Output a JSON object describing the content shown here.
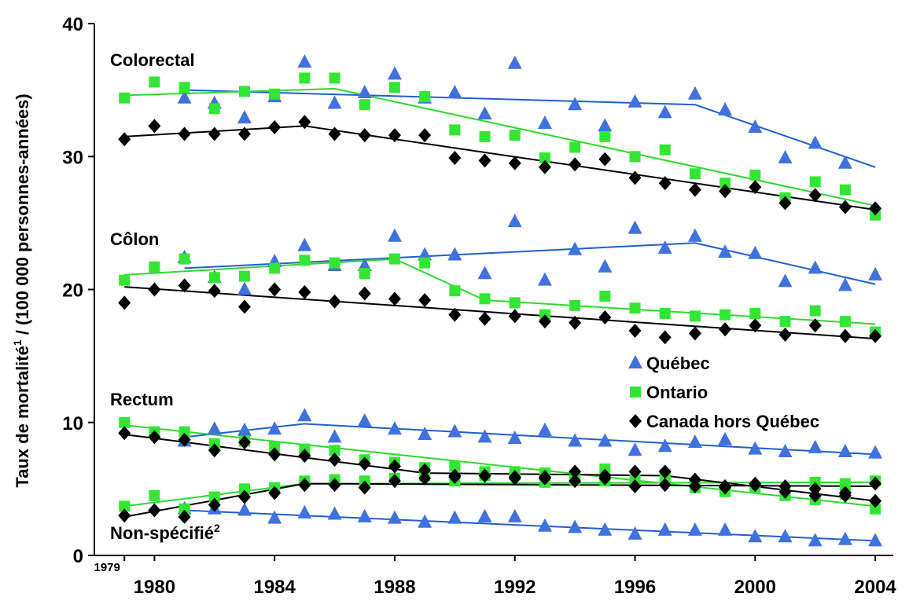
{
  "chart_data": {
    "type": "scatter",
    "y_label": {
      "text": "Taux de mortalité",
      "note": "1",
      "rest": " / (100 000 personnes-années)"
    },
    "xlim": [
      1978,
      2004.6
    ],
    "ylim": [
      0,
      40
    ],
    "xticks": [
      1979,
      1980,
      1984,
      1988,
      1992,
      1996,
      2000,
      2004
    ],
    "yticks": [
      0,
      10,
      20,
      30,
      40
    ],
    "legend": "center-right",
    "x": [
      1979,
      1980,
      1981,
      1982,
      1983,
      1984,
      1985,
      1986,
      1987,
      1988,
      1989,
      1990,
      1991,
      1992,
      1993,
      1994,
      1995,
      1996,
      1997,
      1998,
      1999,
      2000,
      2001,
      2002,
      2003,
      2004
    ],
    "groups": [
      {
        "label": "Colorectal"
      },
      {
        "label": "Côlon"
      },
      {
        "label": "Rectum"
      },
      {
        "label": "Non-spécifié",
        "note": "2"
      }
    ],
    "series": [
      {
        "name": "Québec",
        "color": "#3f72dc",
        "line_color": "#1f5fcf",
        "marker": "triangle",
        "groups": [
          {
            "values": [
              null,
              null,
              34.4,
              34.0,
              32.9,
              34.5,
              37.1,
              34.0,
              34.8,
              36.2,
              34.4,
              34.8,
              33.2,
              37.0,
              32.5,
              33.9,
              32.3,
              34.1,
              33.3,
              34.7,
              33.5,
              32.2,
              29.9,
              31.0,
              29.5,
              null
            ],
            "trend_x": [
              1981,
              1998,
              2004
            ],
            "trend": [
              35.0,
              33.9,
              29.2
            ]
          },
          {
            "values": [
              null,
              null,
              22.4,
              20.9,
              20.0,
              22.1,
              23.3,
              21.8,
              21.8,
              24.0,
              22.6,
              22.6,
              21.2,
              25.1,
              20.7,
              23.0,
              21.7,
              24.6,
              23.1,
              24.0,
              22.8,
              22.7,
              20.6,
              21.6,
              20.3,
              21.1
            ],
            "trend_x": [
              1981,
              1998,
              2004
            ],
            "trend": [
              21.6,
              23.5,
              20.4
            ]
          },
          {
            "values": [
              null,
              null,
              8.6,
              9.5,
              9.4,
              9.5,
              10.5,
              8.9,
              10.1,
              9.5,
              9.1,
              9.3,
              8.9,
              8.8,
              9.4,
              8.6,
              8.6,
              7.9,
              8.2,
              8.5,
              8.7,
              8.0,
              7.8,
              8.1,
              7.8,
              7.7
            ],
            "trend_x": [
              1981,
              1985,
              2004
            ],
            "trend": [
              8.9,
              9.9,
              7.6
            ]
          },
          {
            "values": [
              null,
              null,
              3.5,
              3.5,
              3.4,
              2.8,
              3.2,
              3.1,
              2.9,
              2.8,
              2.5,
              2.8,
              2.9,
              2.9,
              2.2,
              2.1,
              1.9,
              1.6,
              1.9,
              1.9,
              1.9,
              1.4,
              1.4,
              1.1,
              1.2,
              1.1
            ],
            "trend_x": [
              1981,
              2004
            ],
            "trend": [
              3.4,
              1.1
            ]
          }
        ]
      },
      {
        "name": "Ontario",
        "color": "#33e633",
        "line_color": "#2fd82f",
        "marker": "square",
        "groups": [
          {
            "values": [
              34.4,
              35.6,
              35.2,
              33.6,
              34.9,
              34.7,
              35.9,
              35.9,
              33.9,
              35.2,
              34.5,
              32.0,
              31.5,
              31.6,
              29.9,
              30.7,
              31.5,
              30.0,
              30.5,
              28.7,
              28.0,
              28.6,
              26.9,
              28.1,
              27.5,
              25.6
            ],
            "trend_x": [
              1979,
              1986,
              2004
            ],
            "trend": [
              34.6,
              35.1,
              26.3
            ]
          },
          {
            "values": [
              20.7,
              21.7,
              22.3,
              20.9,
              21.0,
              21.6,
              22.2,
              22.0,
              21.2,
              22.3,
              22.0,
              19.9,
              19.3,
              19.0,
              18.1,
              18.8,
              19.5,
              18.6,
              18.2,
              18.0,
              18.1,
              18.2,
              17.6,
              18.4,
              17.6,
              16.8
            ],
            "trend_x": [
              1979,
              1988,
              1991,
              2004
            ],
            "trend": [
              21.1,
              22.3,
              19.2,
              17.4
            ]
          },
          {
            "values": [
              10.0,
              9.3,
              9.3,
              8.4,
              8.6,
              8.2,
              8.0,
              7.9,
              7.2,
              7.0,
              6.6,
              6.7,
              6.3,
              6.3,
              6.2,
              5.9,
              6.5,
              5.7,
              6.1,
              5.2,
              4.8,
              5.1,
              4.5,
              4.2,
              4.6,
              3.5
            ],
            "trend_x": [
              1979,
              2004
            ],
            "trend": [
              9.8,
              3.7
            ]
          },
          {
            "values": [
              3.7,
              4.5,
              3.5,
              4.4,
              5.0,
              5.1,
              5.6,
              5.7,
              5.6,
              5.8,
              6.0,
              5.6,
              6.0,
              6.1,
              5.5,
              5.7,
              5.6,
              5.7,
              5.7,
              5.1,
              5.0,
              5.1,
              4.8,
              5.5,
              5.4,
              5.6
            ],
            "trend_x": [
              1979,
              1985,
              2004
            ],
            "trend": [
              3.7,
              5.4,
              5.5
            ]
          }
        ]
      },
      {
        "name": "Canada hors Québec",
        "color": "#000000",
        "line_color": "#000000",
        "marker": "diamond",
        "groups": [
          {
            "values": [
              31.3,
              32.3,
              31.7,
              31.7,
              31.7,
              32.2,
              32.6,
              31.7,
              31.6,
              31.6,
              31.6,
              29.9,
              29.7,
              29.5,
              29.2,
              29.4,
              29.8,
              28.4,
              28.0,
              27.5,
              27.4,
              27.7,
              26.5,
              27.1,
              26.2,
              26.1
            ],
            "trend_x": [
              1979,
              1985,
              2004
            ],
            "trend": [
              31.5,
              32.3,
              26.0
            ]
          },
          {
            "values": [
              19.0,
              20.0,
              20.3,
              19.9,
              18.7,
              20.0,
              19.8,
              19.1,
              19.7,
              19.3,
              19.2,
              18.1,
              17.8,
              18.0,
              17.6,
              17.5,
              17.9,
              16.9,
              16.4,
              16.7,
              17.0,
              17.3,
              16.6,
              17.3,
              16.5,
              16.5
            ],
            "trend_x": [
              1979,
              2004
            ],
            "trend": [
              20.2,
              16.3
            ]
          },
          {
            "values": [
              9.2,
              8.9,
              8.7,
              7.9,
              8.5,
              7.6,
              7.5,
              7.2,
              6.9,
              6.7,
              6.4,
              6.0,
              6.0,
              5.9,
              5.9,
              6.3,
              6.0,
              6.3,
              6.3,
              5.7,
              5.2,
              5.4,
              5.2,
              5.0,
              4.7,
              4.1
            ],
            "trend_x": [
              1979,
              1989,
              1997,
              2004
            ],
            "trend": [
              9.1,
              6.2,
              6.0,
              4.1
            ]
          },
          {
            "values": [
              3.0,
              3.4,
              2.9,
              3.8,
              4.4,
              4.7,
              5.3,
              5.3,
              5.1,
              5.6,
              5.8,
              5.9,
              6.0,
              5.8,
              5.8,
              5.6,
              5.8,
              5.2,
              5.3,
              5.2,
              5.1,
              5.3,
              4.8,
              4.5,
              4.5,
              5.4
            ],
            "trend_x": [
              1979,
              1985,
              2004
            ],
            "trend": [
              2.9,
              5.4,
              5.2
            ]
          }
        ]
      }
    ]
  }
}
